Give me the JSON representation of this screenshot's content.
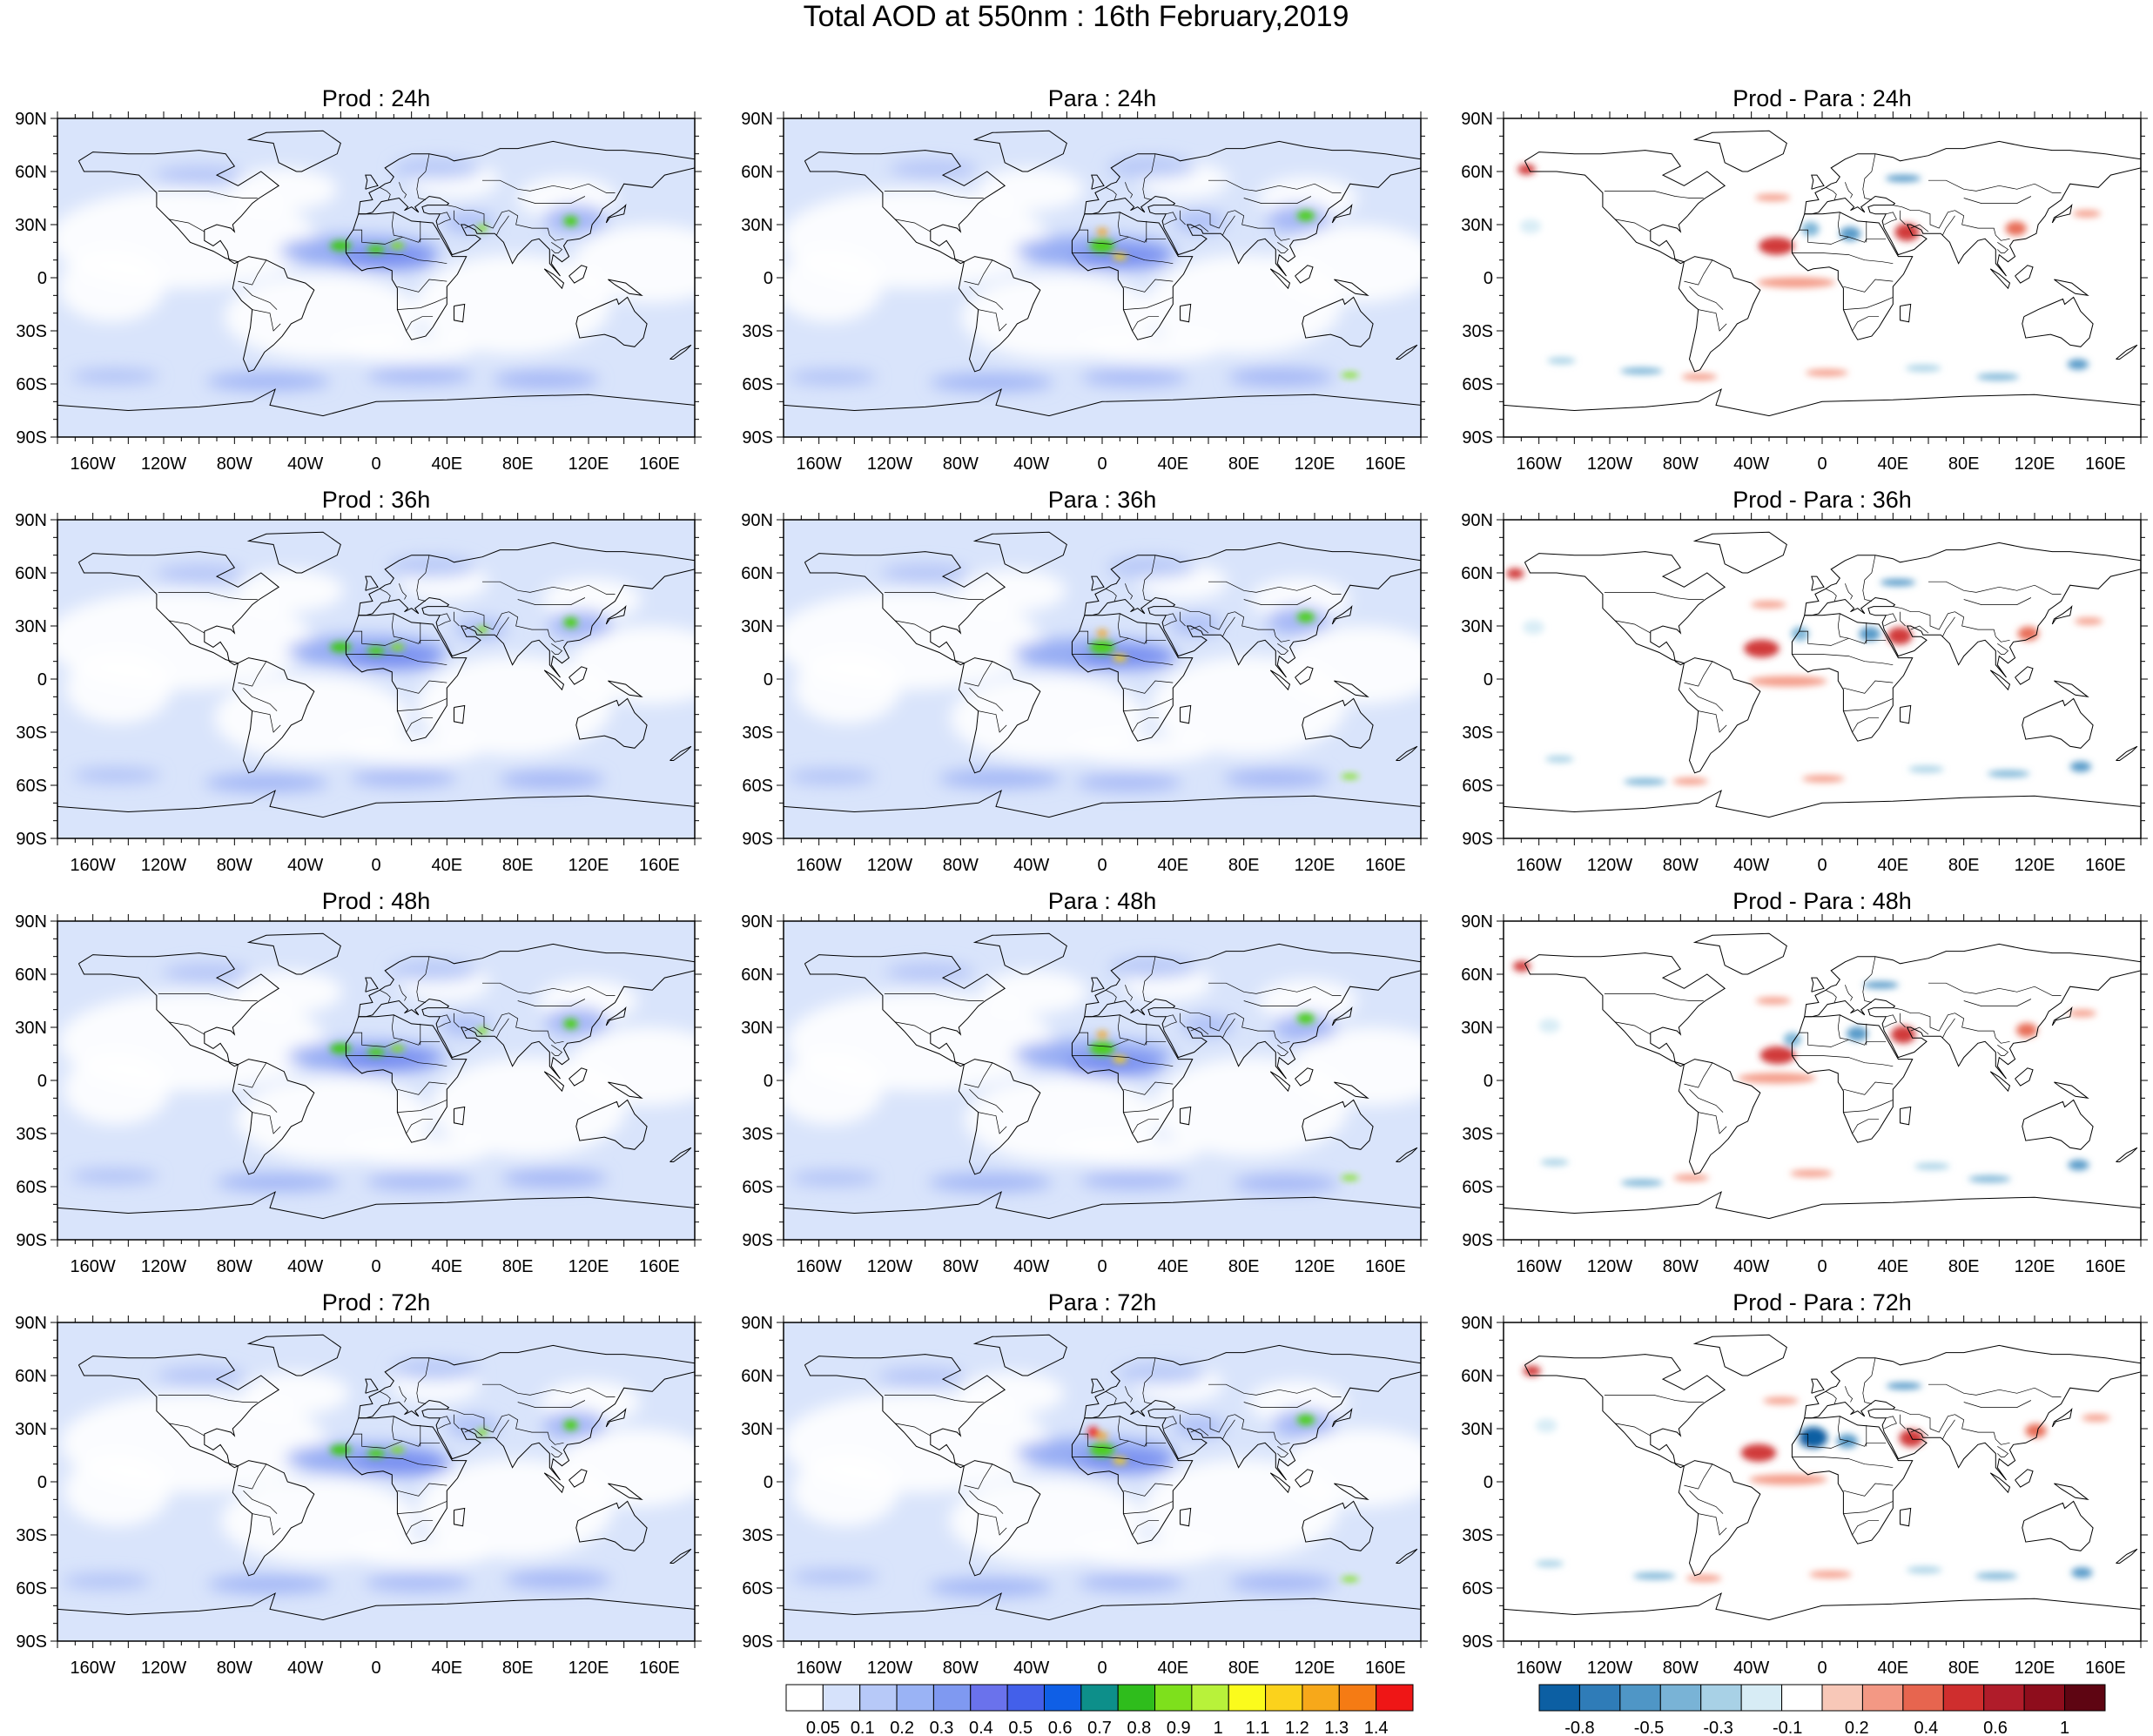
{
  "title": "Total AOD at 550nm : 16th February,2019",
  "lat_labels": [
    "90N",
    "60N",
    "30N",
    "0",
    "30S",
    "60S",
    "90S"
  ],
  "lon_labels": [
    "160W",
    "120W",
    "80W",
    "40W",
    "0",
    "40E",
    "80E",
    "120E",
    "160E"
  ],
  "rows": [
    {
      "forecast_hour": "24h",
      "panels": [
        {
          "title": "Prod : 24h",
          "kind": "aod"
        },
        {
          "title": "Para : 24h",
          "kind": "aod"
        },
        {
          "title": "Prod - Para : 24h",
          "kind": "diff"
        }
      ]
    },
    {
      "forecast_hour": "36h",
      "panels": [
        {
          "title": "Prod : 36h",
          "kind": "aod"
        },
        {
          "title": "Para : 36h",
          "kind": "aod"
        },
        {
          "title": "Prod - Para : 36h",
          "kind": "diff"
        }
      ]
    },
    {
      "forecast_hour": "48h",
      "panels": [
        {
          "title": "Prod : 48h",
          "kind": "aod"
        },
        {
          "title": "Para : 48h",
          "kind": "aod"
        },
        {
          "title": "Prod - Para : 48h",
          "kind": "diff"
        }
      ]
    },
    {
      "forecast_hour": "72h",
      "panels": [
        {
          "title": "Prod : 72h",
          "kind": "aod"
        },
        {
          "title": "Para : 72h",
          "kind": "aod"
        },
        {
          "title": "Prod - Para : 72h",
          "kind": "diff"
        }
      ]
    }
  ],
  "aod_colorbar": {
    "labels": [
      "0.05",
      "0.1",
      "0.2",
      "0.3",
      "0.4",
      "0.5",
      "0.6",
      "0.7",
      "0.8",
      "0.9",
      "1",
      "1.1",
      "1.2",
      "1.3",
      "1.4"
    ],
    "colors": [
      "#ffffff",
      "#d6e2fb",
      "#b7c9f8",
      "#9ab3f5",
      "#7f99f1",
      "#6a72ec",
      "#4360ea",
      "#0f5fe6",
      "#0d8f8a",
      "#2fbd1c",
      "#7ee01c",
      "#b8f23a",
      "#fbfb1c",
      "#fbd21c",
      "#f7a81a",
      "#f57b14",
      "#ef1616"
    ]
  },
  "diff_colorbar": {
    "labels": [
      "-0.8",
      "-0.5",
      "-0.3",
      "-0.1",
      "0.2",
      "0.4",
      "0.6",
      "1"
    ],
    "colors": [
      "#0c5fa3",
      "#2f7cb8",
      "#4f96c6",
      "#79b3d6",
      "#a8d1e6",
      "#d7ecf5",
      "#ffffff",
      "#f8c8b8",
      "#f39884",
      "#e7654f",
      "#cf2e2e",
      "#b01c2a",
      "#8e0d1c",
      "#5e0512"
    ]
  }
}
